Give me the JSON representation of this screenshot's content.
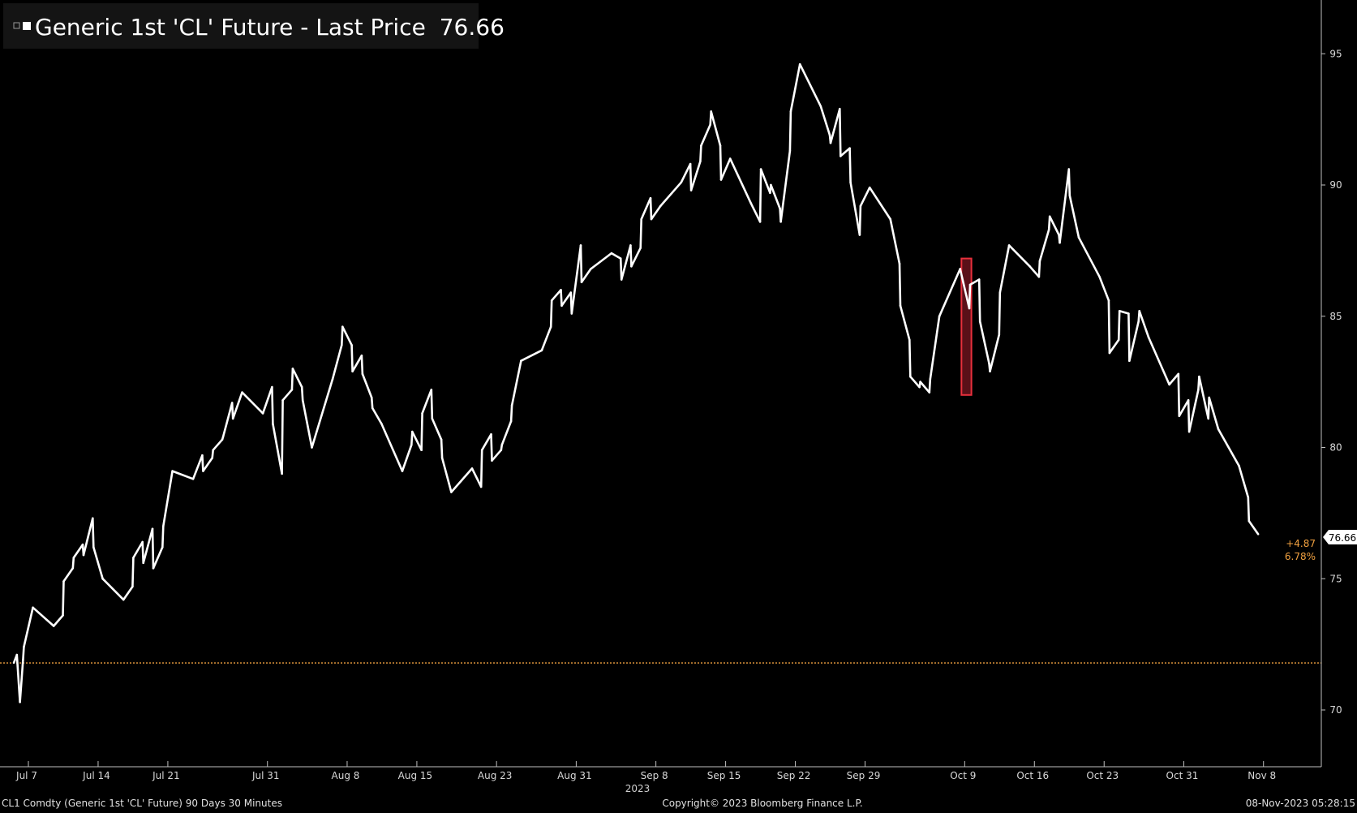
{
  "chart_data": {
    "type": "line",
    "title": "Generic 1st 'CL' Future - Last Price",
    "last_price": "76.66",
    "ylim": [
      68,
      97
    ],
    "y_ticks": [
      70,
      75,
      80,
      85,
      90,
      95
    ],
    "x_ticks": [
      "Jul 7",
      "Jul 14",
      "Jul 21",
      "Jul 31",
      "Aug 8",
      "Aug 15",
      "Aug 23",
      "Aug 31",
      "Sep 8",
      "Sep 15",
      "Sep 22",
      "Sep 29",
      "Oct 9",
      "Oct 16",
      "Oct 23",
      "Oct 31",
      "Nov 8"
    ],
    "year_label": "2023",
    "change_abs": "+4.87",
    "change_pct": "6.78%",
    "reference_level": 71.79,
    "highlight": {
      "from": "Oct 9",
      "to": "Oct 10",
      "low": 82.0,
      "high": 87.2
    },
    "series": [
      {
        "color": "#ffffff",
        "points": [
          [
            "Jul 6",
            71.8
          ],
          [
            "Jul 6",
            72.1
          ],
          [
            "Jul 6",
            70.3
          ],
          [
            "Jul 6",
            71.9
          ],
          [
            "Jul 7",
            72.4
          ],
          [
            "Jul 7",
            73.9
          ],
          [
            "Jul 10",
            73.2
          ],
          [
            "Jul 10",
            73.6
          ],
          [
            "Jul 11",
            74.9
          ],
          [
            "Jul 11",
            75.4
          ],
          [
            "Jul 12",
            75.8
          ],
          [
            "Jul 12",
            76.3
          ],
          [
            "Jul 13",
            75.9
          ],
          [
            "Jul 13",
            77.3
          ],
          [
            "Jul 14",
            76.2
          ],
          [
            "Jul 14",
            75.0
          ],
          [
            "Jul 17",
            74.2
          ],
          [
            "Jul 17",
            74.7
          ],
          [
            "Jul 18",
            75.8
          ],
          [
            "Jul 18",
            76.4
          ],
          [
            "Jul 19",
            75.6
          ],
          [
            "Jul 19",
            76.9
          ],
          [
            "Jul 20",
            75.4
          ],
          [
            "Jul 20",
            76.2
          ],
          [
            "Jul 21",
            77.0
          ],
          [
            "Jul 21",
            79.1
          ],
          [
            "Jul 24",
            78.8
          ],
          [
            "Jul 24",
            79.7
          ],
          [
            "Jul 25",
            79.1
          ],
          [
            "Jul 25",
            79.6
          ],
          [
            "Jul 26",
            79.9
          ],
          [
            "Jul 26",
            80.3
          ],
          [
            "Jul 27",
            80.4
          ],
          [
            "Jul 27",
            81.7
          ],
          [
            "Jul 28",
            81.1
          ],
          [
            "Jul 28",
            82.1
          ],
          [
            "Jul 31",
            81.3
          ],
          [
            "Jul 31",
            82.3
          ],
          [
            "Aug 1",
            80.9
          ],
          [
            "Aug 1",
            79.0
          ],
          [
            "Aug 2",
            81.8
          ],
          [
            "Aug 2",
            82.2
          ],
          [
            "Aug 3",
            83.0
          ],
          [
            "Aug 3",
            82.3
          ],
          [
            "Aug 4",
            81.8
          ],
          [
            "Aug 4",
            80.0
          ],
          [
            "Aug 7",
            82.6
          ],
          [
            "Aug 7",
            83.9
          ],
          [
            "Aug 8",
            84.6
          ],
          [
            "Aug 8",
            83.9
          ],
          [
            "Aug 9",
            82.9
          ],
          [
            "Aug 9",
            83.5
          ],
          [
            "Aug 10",
            82.8
          ],
          [
            "Aug 10",
            81.9
          ],
          [
            "Aug 11",
            81.5
          ],
          [
            "Aug 11",
            80.9
          ],
          [
            "Aug 14",
            79.1
          ],
          [
            "Aug 14",
            80.1
          ],
          [
            "Aug 15",
            80.6
          ],
          [
            "Aug 15",
            79.9
          ],
          [
            "Aug 16",
            81.3
          ],
          [
            "Aug 16",
            82.2
          ],
          [
            "Aug 17",
            81.1
          ],
          [
            "Aug 17",
            80.3
          ],
          [
            "Aug 18",
            79.6
          ],
          [
            "Aug 18",
            78.3
          ],
          [
            "Aug 21",
            79.2
          ],
          [
            "Aug 21",
            78.5
          ],
          [
            "Aug 22",
            79.9
          ],
          [
            "Aug 22",
            80.5
          ],
          [
            "Aug 23",
            79.5
          ],
          [
            "Aug 23",
            79.9
          ],
          [
            "Aug 24",
            80.1
          ],
          [
            "Aug 24",
            81.0
          ],
          [
            "Aug 25",
            81.6
          ],
          [
            "Aug 25",
            83.3
          ],
          [
            "Aug 28",
            83.7
          ],
          [
            "Aug 28",
            84.6
          ],
          [
            "Aug 29",
            85.6
          ],
          [
            "Aug 29",
            86.0
          ],
          [
            "Aug 30",
            85.4
          ],
          [
            "Aug 30",
            85.9
          ],
          [
            "Aug 31",
            85.1
          ],
          [
            "Aug 31",
            87.7
          ],
          [
            "Sep 1",
            86.3
          ],
          [
            "Sep 1",
            86.8
          ],
          [
            "Sep 4",
            87.4
          ],
          [
            "Sep 4",
            87.2
          ],
          [
            "Sep 5",
            86.4
          ],
          [
            "Sep 5",
            87.7
          ],
          [
            "Sep 6",
            86.9
          ],
          [
            "Sep 6",
            87.6
          ],
          [
            "Sep 7",
            88.7
          ],
          [
            "Sep 7",
            89.5
          ],
          [
            "Sep 8",
            88.7
          ],
          [
            "Sep 8",
            89.2
          ],
          [
            "Sep 11",
            90.1
          ],
          [
            "Sep 11",
            90.8
          ],
          [
            "Sep 12",
            89.8
          ],
          [
            "Sep 12",
            90.9
          ],
          [
            "Sep 13",
            91.5
          ],
          [
            "Sep 13",
            92.3
          ],
          [
            "Sep 14",
            92.8
          ],
          [
            "Sep 14",
            91.5
          ],
          [
            "Sep 15",
            90.2
          ],
          [
            "Sep 15",
            91.0
          ],
          [
            "Sep 18",
            89.3
          ],
          [
            "Sep 18",
            88.6
          ],
          [
            "Sep 19",
            90.6
          ],
          [
            "Sep 19",
            89.7
          ],
          [
            "Sep 20",
            90.0
          ],
          [
            "Sep 20",
            89.1
          ],
          [
            "Sep 21",
            88.6
          ],
          [
            "Sep 21",
            91.3
          ],
          [
            "Sep 22",
            92.8
          ],
          [
            "Sep 22",
            94.6
          ],
          [
            "Sep 25",
            93.0
          ],
          [
            "Sep 25",
            91.9
          ],
          [
            "Sep 26",
            91.6
          ],
          [
            "Sep 26",
            92.9
          ],
          [
            "Sep 27",
            91.1
          ],
          [
            "Sep 27",
            91.4
          ],
          [
            "Sep 28",
            90.1
          ],
          [
            "Sep 28",
            88.1
          ],
          [
            "Sep 29",
            89.2
          ],
          [
            "Sep 29",
            89.9
          ],
          [
            "Oct 2",
            88.7
          ],
          [
            "Oct 2",
            87.0
          ],
          [
            "Oct 3",
            85.4
          ],
          [
            "Oct 3",
            84.1
          ],
          [
            "Oct 4",
            82.7
          ],
          [
            "Oct 4",
            82.3
          ],
          [
            "Oct 5",
            82.5
          ],
          [
            "Oct 5",
            82.1
          ],
          [
            "Oct 6",
            82.6
          ],
          [
            "Oct 6",
            85.0
          ],
          [
            "Oct 9",
            86.8
          ],
          [
            "Oct 9",
            85.3
          ],
          [
            "Oct 10",
            86.2
          ],
          [
            "Oct 10",
            86.4
          ],
          [
            "Oct 11",
            84.8
          ],
          [
            "Oct 11",
            83.2
          ],
          [
            "Oct 12",
            82.9
          ],
          [
            "Oct 12",
            84.3
          ],
          [
            "Oct 13",
            85.9
          ],
          [
            "Oct 13",
            87.7
          ],
          [
            "Oct 16",
            86.9
          ],
          [
            "Oct 16",
            86.5
          ],
          [
            "Oct 17",
            87.1
          ],
          [
            "Oct 17",
            88.3
          ],
          [
            "Oct 18",
            88.8
          ],
          [
            "Oct 18",
            88.1
          ],
          [
            "Oct 19",
            87.8
          ],
          [
            "Oct 19",
            90.6
          ],
          [
            "Oct 20",
            89.6
          ],
          [
            "Oct 20",
            88.0
          ],
          [
            "Oct 23",
            86.5
          ],
          [
            "Oct 23",
            85.6
          ],
          [
            "Oct 24",
            83.6
          ],
          [
            "Oct 24",
            84.1
          ],
          [
            "Oct 25",
            85.2
          ],
          [
            "Oct 25",
            85.1
          ],
          [
            "Oct 26",
            83.3
          ],
          [
            "Oct 26",
            84.8
          ],
          [
            "Oct 27",
            85.2
          ],
          [
            "Oct 27",
            84.2
          ],
          [
            "Oct 30",
            82.4
          ],
          [
            "Oct 30",
            82.8
          ],
          [
            "Oct 31",
            81.2
          ],
          [
            "Oct 31",
            81.8
          ],
          [
            "Nov 1",
            80.6
          ],
          [
            "Nov 1",
            82.2
          ],
          [
            "Nov 2",
            82.7
          ],
          [
            "Nov 2",
            81.1
          ],
          [
            "Nov 3",
            81.9
          ],
          [
            "Nov 3",
            80.7
          ],
          [
            "Nov 6",
            79.3
          ],
          [
            "Nov 6",
            78.1
          ],
          [
            "Nov 7",
            77.2
          ],
          [
            "Nov 7",
            76.7
          ]
        ]
      }
    ]
  },
  "footer": {
    "left": "CL1 Comdty (Generic 1st 'CL' Future) 90 Days 30 Minutes",
    "center": "Copyright© 2023 Bloomberg Finance L.P.",
    "right": "08-Nov-2023 05:28:15"
  }
}
